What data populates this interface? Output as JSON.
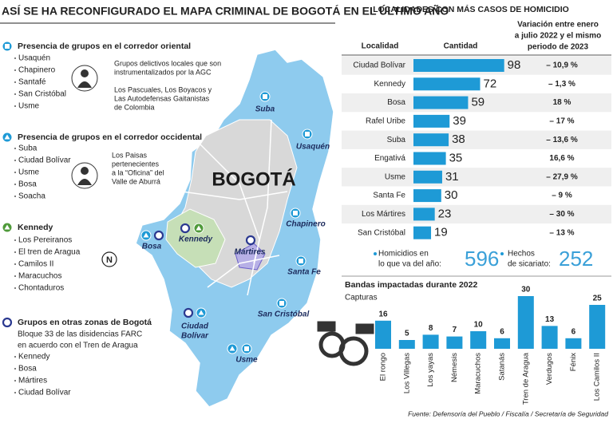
{
  "title": "ASÍ SE HA RECONFIGURADO EL MAPA CRIMINAL DE BOGOTÁ EN EL ÚLTIMO AÑO",
  "groups": [
    {
      "heading": "Presencia de grupos en el corredor oriental",
      "items": [
        "Usaquén",
        "Chapinero",
        "Santafé",
        "San Cristóbal",
        "Usme"
      ],
      "notes": [
        [
          "Grupos delictivos locales que son",
          "instrumentalizados por la AGC"
        ],
        [
          "Los Pascuales, Los Boyacos y",
          "Las Autodefensas Gaitanistas",
          "de Colombia"
        ]
      ]
    },
    {
      "heading": "Presencia de grupos en el corredor occidental",
      "items": [
        "Suba",
        "Ciudad Bolívar",
        "Usme",
        "Bosa",
        "Soacha"
      ],
      "notes": [
        [
          "Los Paisas",
          "pertenecientes",
          "a la “Oficina” del",
          "Valle de Aburrá"
        ]
      ]
    },
    {
      "heading": "Kennedy",
      "items": [
        "Los Pereiranos",
        "El tren de Aragua",
        "Camilos II",
        "Maracuchos",
        "Chontaduros"
      ]
    },
    {
      "heading": "Grupos en otras zonas de Bogotá",
      "description": [
        "Bloque 33 de las disidencias FARC",
        "en acuerdo con el Tren de Aragua"
      ],
      "items": [
        "Kennedy",
        "Bosa",
        "Mártires",
        "Ciudad Bolívar"
      ]
    }
  ],
  "map": {
    "city": "BOGOTÁ",
    "compass": "N",
    "labels": [
      [
        "Suba"
      ],
      [
        "Usaquén"
      ],
      [
        "Chapinero"
      ],
      [
        "Santa Fe"
      ],
      [
        "San Cristóbal"
      ],
      [
        "Usme"
      ],
      [
        "Ciudad",
        "Bolívar"
      ],
      [
        "Bosa"
      ],
      [
        "Kennedy"
      ],
      [
        "Mártires"
      ]
    ]
  },
  "chart_data": [
    {
      "type": "bar",
      "horizontal": true,
      "title": "LOCALIDADES CON MÁS CASOS DE HOMICIDIO",
      "columns": [
        "Localidad",
        "Cantidad"
      ],
      "variation_header": [
        "Variación entre enero",
        "a julio 2022 y el mismo",
        "periodo de 2023"
      ],
      "categories": [
        "Ciudad Bolívar",
        "Kennedy",
        "Bosa",
        "Rafel Uribe",
        "Suba",
        "Engativá",
        "Usme",
        "Santa Fe",
        "Los Mártires",
        "San Cristóbal"
      ],
      "values": [
        98,
        72,
        59,
        39,
        38,
        35,
        31,
        30,
        23,
        19
      ],
      "variations": [
        "– 10,9 %",
        "– 1,3 %",
        "18 %",
        "– 17 %",
        "– 13,6 %",
        "16,6 %",
        "– 27,9 %",
        "– 9 %",
        "– 30 %",
        "– 13 %"
      ],
      "color": "#1e9ad6"
    },
    {
      "type": "bar",
      "title": "Bandas impactadas  durante 2022",
      "ylabel": "Capturas",
      "categories": [
        "El rongo",
        "Los Villegas",
        "Los yayas",
        "Némesis",
        "Maracuchos",
        "Satanás",
        "Tren de Aragua",
        "Verdugos",
        "Fénix",
        "Los Camilos II"
      ],
      "values": [
        16,
        5,
        8,
        7,
        10,
        6,
        30,
        13,
        6,
        25
      ],
      "color": "#1e9ad6"
    }
  ],
  "totals": [
    {
      "label": [
        "Homicidios en",
        "lo que va del año:"
      ],
      "value": 596
    },
    {
      "label": [
        "Hechos",
        "de sicariato:"
      ],
      "value": 252
    }
  ],
  "source": "Fuente: Defensoría del Pueblo / Fiscalía / Secretaría de Seguridad"
}
